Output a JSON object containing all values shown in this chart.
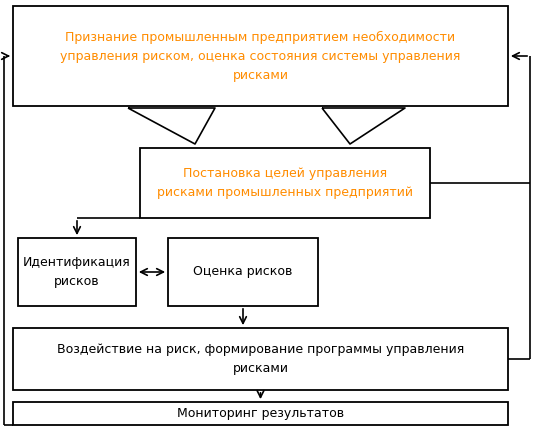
{
  "box1_text": "Признание промышленным предприятием необходимости\nуправления риском, оценка состояния системы управления\nрисками",
  "box2_text": "Постановка целей управления\nрисками промышленных предприятий",
  "box3_text": "Идентификация\nрисков",
  "box4_text": "Оценка рисков",
  "box5_text": "Воздействие на риск, формирование программы управления\nрисками",
  "box6_text": "Мониторинг результатов",
  "text_color_box1": "#ff8c00",
  "text_color_box2": "#ff8c00",
  "text_color_boxes": "#000000",
  "box_edge_color": "#000000",
  "arrow_color": "#000000",
  "bg_color": "#ffffff",
  "font_size": 9.0
}
